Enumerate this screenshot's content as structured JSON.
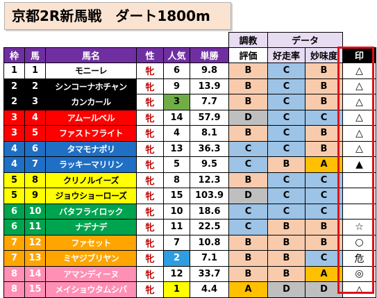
{
  "title": "京都2R新馬戦　ダート1800m",
  "headers": {
    "waku": "枠",
    "uma": "馬",
    "name": "馬名",
    "sex": "性",
    "pop": "人気",
    "odds": "単勝",
    "chokyo_top": "調教",
    "chokyo_bottom": "評価",
    "data_top": "データ",
    "kosouritsu": "好走率",
    "mimido": "妙味度",
    "mark": "印"
  },
  "colors": {
    "frame_1": "#ffffff",
    "frame_2": "#000000",
    "frame_3": "#ff0000",
    "frame_4": "#1f6fc5",
    "frame_5": "#ffff00",
    "frame_6": "#00a44f",
    "frame_7": "#ffa500",
    "frame_8": "#ff8fb4",
    "grade_A": "#ffc000",
    "grade_B": "#f8cbad",
    "grade_C": "#9dc3e6",
    "grade_D": "#bfbfbf",
    "pop_highlight_green": "#70ad47",
    "pop_highlight_blue": "#2f9ee0",
    "pop_highlight_yellow": "#ffff00",
    "header_purple": "#6f2fa0",
    "mark_border": "#e0101c",
    "sex_text": "#c00000"
  },
  "rows": [
    {
      "waku": "1",
      "uma": "1",
      "name": "モニーレ",
      "sex": "牝",
      "pop": "6",
      "odds": "9.8",
      "chokyo": "B",
      "kosou": "C",
      "mimi": "B",
      "mark": "△",
      "frame": 1,
      "pop_hl": ""
    },
    {
      "waku": "2",
      "uma": "2",
      "name": "シンコーナホチャン",
      "sex": "牝",
      "pop": "9",
      "odds": "13.9",
      "chokyo": "B",
      "kosou": "C",
      "mimi": "B",
      "mark": "△",
      "frame": 2,
      "pop_hl": ""
    },
    {
      "waku": "2",
      "uma": "3",
      "name": "カンカール",
      "sex": "牝",
      "pop": "3",
      "odds": "7.7",
      "chokyo": "B",
      "kosou": "C",
      "mimi": "B",
      "mark": "△",
      "frame": 2,
      "pop_hl": "green"
    },
    {
      "waku": "3",
      "uma": "4",
      "name": "アムールベル",
      "sex": "牝",
      "pop": "14",
      "odds": "57.9",
      "chokyo": "D",
      "kosou": "C",
      "mimi": "C",
      "mark": "△",
      "frame": 3,
      "pop_hl": ""
    },
    {
      "waku": "3",
      "uma": "5",
      "name": "ファストフライト",
      "sex": "牝",
      "pop": "4",
      "odds": "8.1",
      "chokyo": "B",
      "kosou": "C",
      "mimi": "B",
      "mark": "△",
      "frame": 3,
      "pop_hl": ""
    },
    {
      "waku": "4",
      "uma": "6",
      "name": "タマモナポリ",
      "sex": "牝",
      "pop": "13",
      "odds": "36.3",
      "chokyo": "C",
      "kosou": "C",
      "mimi": "B",
      "mark": "△",
      "frame": 4,
      "pop_hl": ""
    },
    {
      "waku": "4",
      "uma": "7",
      "name": "ラッキーマリリン",
      "sex": "牝",
      "pop": "5",
      "odds": "9.5",
      "chokyo": "C",
      "kosou": "B",
      "mimi": "A",
      "mark": "▲",
      "frame": 4,
      "pop_hl": ""
    },
    {
      "waku": "5",
      "uma": "8",
      "name": "クリノルイーズ",
      "sex": "牝",
      "pop": "8",
      "odds": "12.3",
      "chokyo": "B",
      "kosou": "C",
      "mimi": "C",
      "mark": "",
      "frame": 5,
      "pop_hl": ""
    },
    {
      "waku": "5",
      "uma": "9",
      "name": "ジョウショーローズ",
      "sex": "牝",
      "pop": "15",
      "odds": "103.9",
      "chokyo": "D",
      "kosou": "C",
      "mimi": "C",
      "mark": "",
      "frame": 5,
      "pop_hl": ""
    },
    {
      "waku": "6",
      "uma": "10",
      "name": "バタフライロック",
      "sex": "牝",
      "pop": "10",
      "odds": "18.6",
      "chokyo": "C",
      "kosou": "C",
      "mimi": "C",
      "mark": "",
      "frame": 6,
      "pop_hl": ""
    },
    {
      "waku": "6",
      "uma": "11",
      "name": "ナデナデ",
      "sex": "牝",
      "pop": "11",
      "odds": "22.5",
      "chokyo": "C",
      "kosou": "B",
      "mimi": "B",
      "mark": "☆",
      "frame": 6,
      "pop_hl": ""
    },
    {
      "waku": "7",
      "uma": "12",
      "name": "ファセット",
      "sex": "牝",
      "pop": "7",
      "odds": "10.8",
      "chokyo": "B",
      "kosou": "B",
      "mimi": "B",
      "mark": "○",
      "frame": 7,
      "pop_hl": ""
    },
    {
      "waku": "7",
      "uma": "13",
      "name": "ミヤジブリヤン",
      "sex": "牝",
      "pop": "2",
      "odds": "7.1",
      "chokyo": "B",
      "kosou": "B",
      "mimi": "C",
      "mark": "危",
      "frame": 7,
      "pop_hl": "blue"
    },
    {
      "waku": "8",
      "uma": "14",
      "name": "アマンディーヌ",
      "sex": "牝",
      "pop": "12",
      "odds": "33.7",
      "chokyo": "B",
      "kosou": "B",
      "mimi": "A",
      "mark": "◎",
      "frame": 8,
      "pop_hl": ""
    },
    {
      "waku": "8",
      "uma": "15",
      "name": "メイショウタムシバ",
      "sex": "牝",
      "pop": "1",
      "odds": "4.4",
      "chokyo": "A",
      "kosou": "D",
      "mimi": "D",
      "mark": "△",
      "frame": 8,
      "pop_hl": "yellow"
    }
  ]
}
